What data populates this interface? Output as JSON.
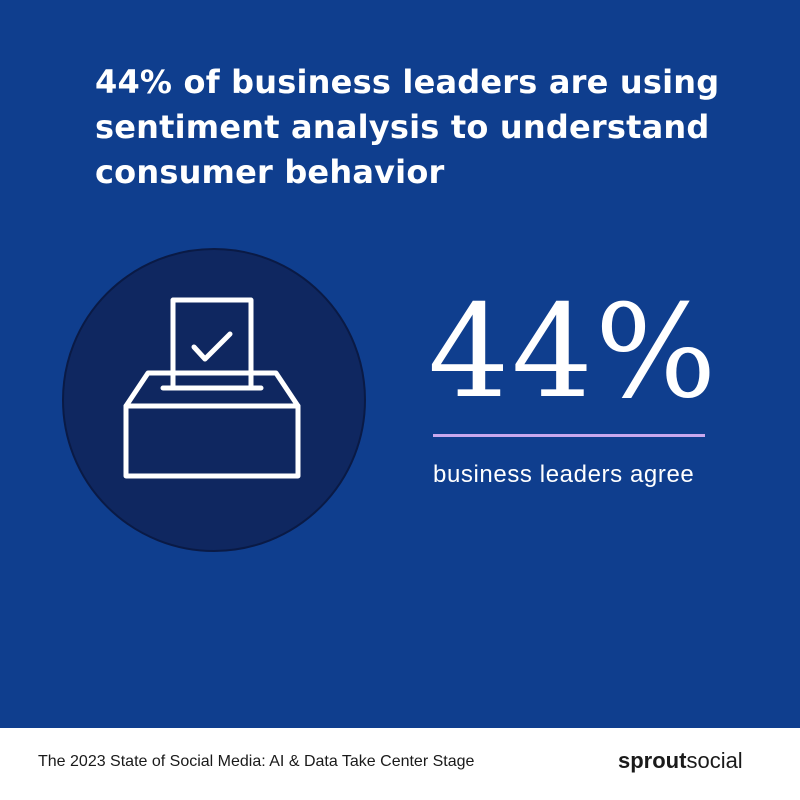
{
  "headline": "44% of business leaders are using sentiment analysis to understand consumer behavior",
  "stat": {
    "value": "44%",
    "label": "business leaders agree"
  },
  "icon": "ballot-box-icon",
  "footer": {
    "caption": "The 2023 State of Social Media: AI & Data Take Center Stage",
    "logo_bold": "sprout",
    "logo_regular": "social"
  },
  "colors": {
    "background": "#0f3e8e",
    "circle": "#0f2760",
    "accent_rule": "#c9a8ee",
    "footer": "#ffffff",
    "text_light": "#ffffff",
    "text_dark": "#1a1a1a"
  }
}
